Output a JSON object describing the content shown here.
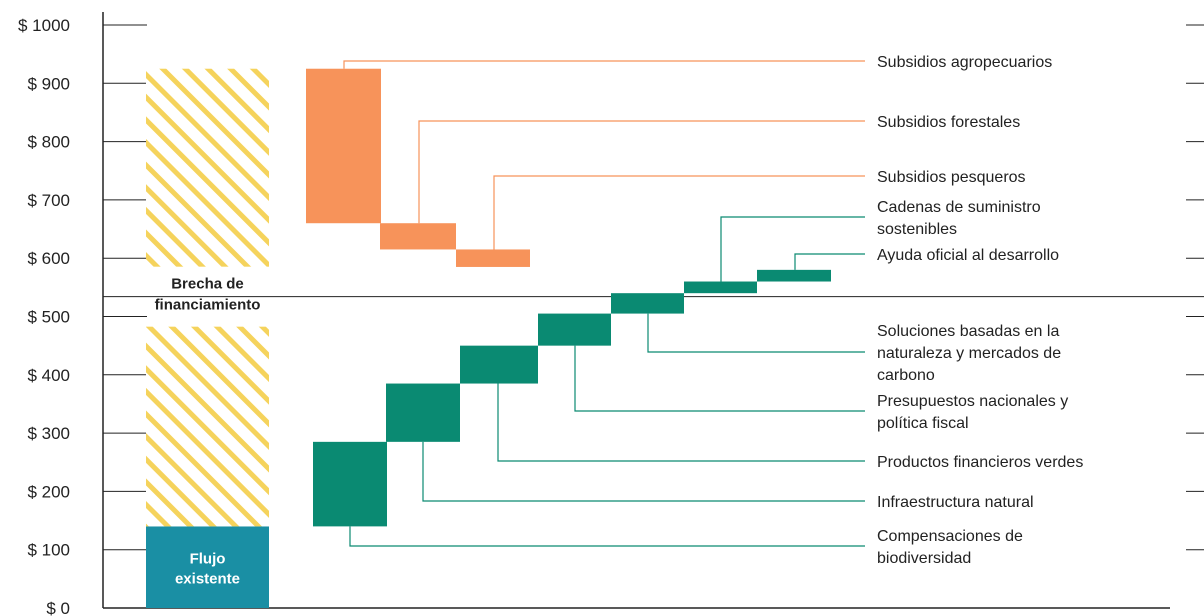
{
  "chart_data": {
    "type": "bar",
    "title": "",
    "xlabel": "",
    "ylabel": "",
    "ylim": [
      0,
      1000
    ],
    "y_ticks": [
      "$ 0",
      "$ 100",
      "$ 200",
      "$ 300",
      "$ 400",
      "$ 500",
      "$ 600",
      "$ 700",
      "$ 800",
      "$ 900",
      "$ 1000"
    ],
    "existing_flow": {
      "label": "Flujo existente",
      "value": 140,
      "color": "#1a8fa4"
    },
    "financing_gap": {
      "label": "Brecha de financiamiento",
      "start": 140,
      "end": 925,
      "color": "#f5d35c"
    },
    "reference_line": 534,
    "subsidies": {
      "color": "#f7935a",
      "items": [
        {
          "name": "Subsidios agropecuarios",
          "start": 925,
          "end": 660
        },
        {
          "name": "Subsidios forestales",
          "start": 660,
          "end": 615
        },
        {
          "name": "Subsidios pesqueros",
          "start": 615,
          "end": 585
        }
      ]
    },
    "solutions": {
      "color": "#0a8a72",
      "items": [
        {
          "name": "Compensaciones de biodiversidad",
          "start": 140,
          "end": 285
        },
        {
          "name": "Infraestructura natural",
          "start": 285,
          "end": 385
        },
        {
          "name": "Productos financieros verdes",
          "start": 385,
          "end": 450
        },
        {
          "name": "Presupuestos nacionales y política fiscal",
          "start": 450,
          "end": 505
        },
        {
          "name": "Soluciones basadas en la naturaleza y mercados de carbono",
          "start": 505,
          "end": 540
        },
        {
          "name": "Cadenas de suministro sostenibles",
          "start": 540,
          "end": 560
        },
        {
          "name": "Ayuda oficial al desarrollo",
          "start": 560,
          "end": 580
        }
      ]
    }
  }
}
